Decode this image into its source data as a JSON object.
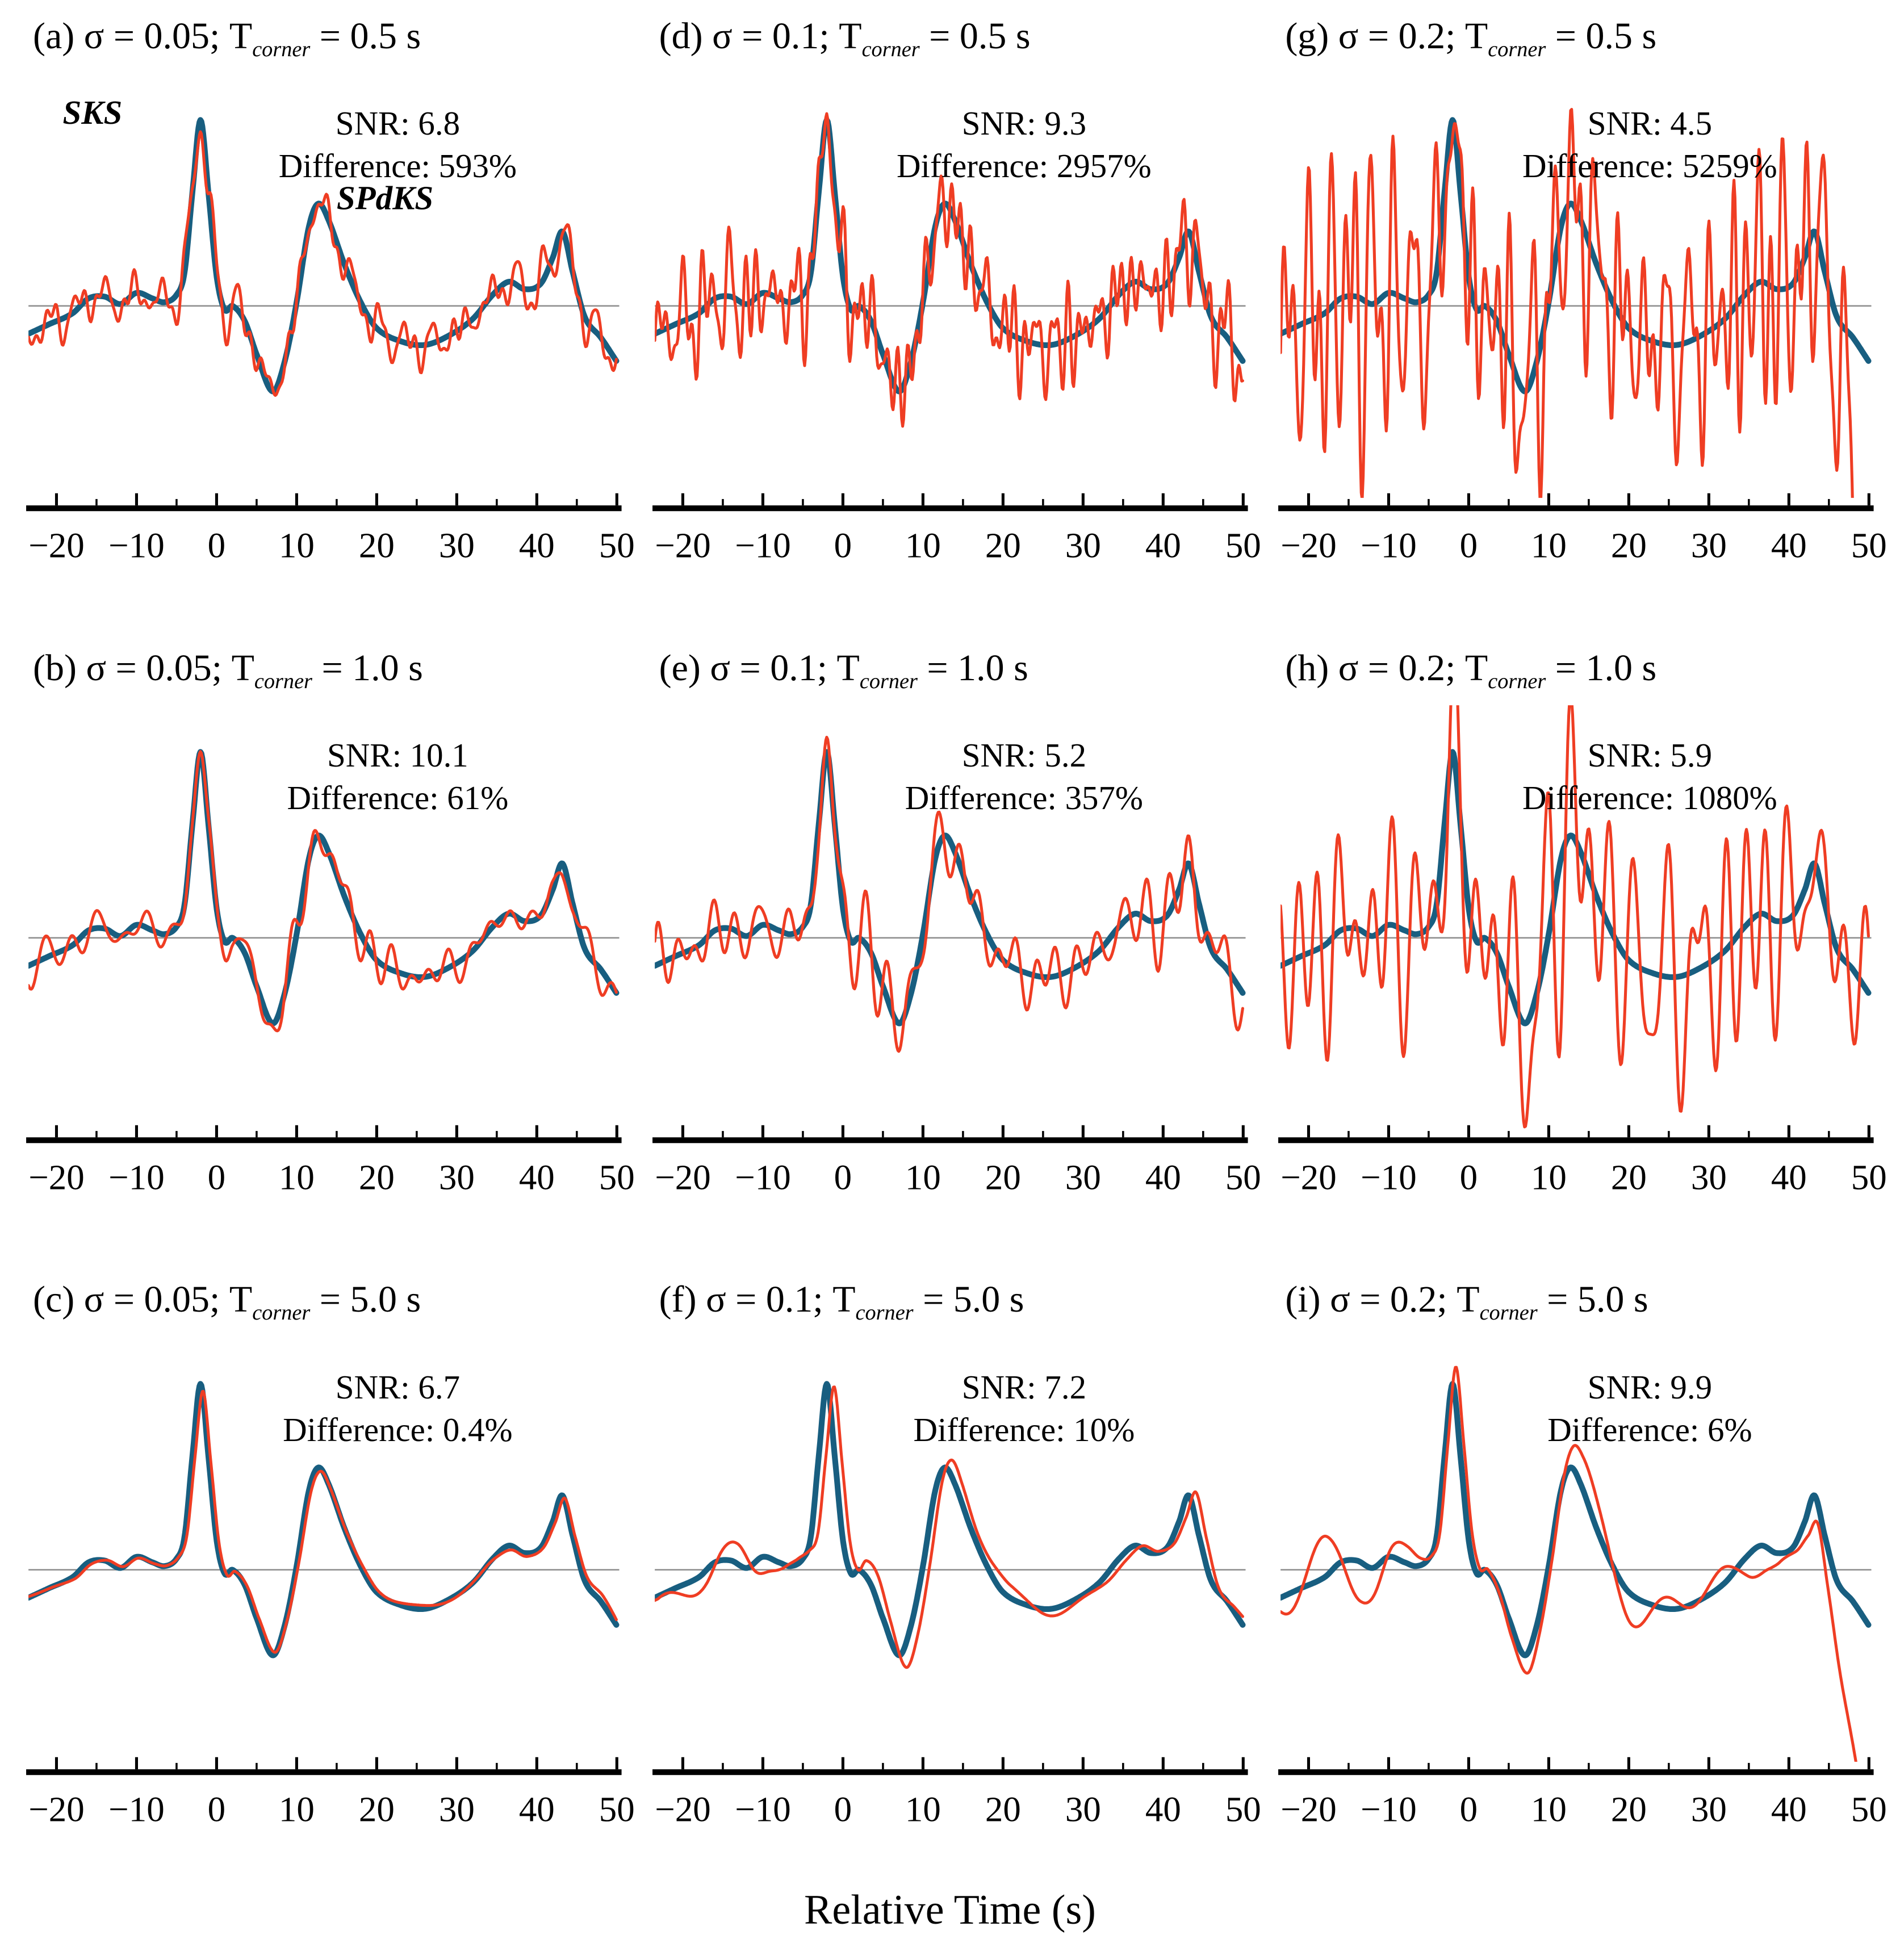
{
  "figure": {
    "xlabel": "Relative Time (s)"
  },
  "chart_data": {
    "type": "line",
    "xlabel": "Relative Time (s)",
    "x_range": [
      -23.5,
      50.3
    ],
    "y_range": [
      -1.02,
      1.22
    ],
    "grid": "off",
    "legend": "none",
    "colors": {
      "reference_trace": "#185e80",
      "noisy_trace": "#ef3d23",
      "zero_line": "#8c8c8c",
      "axis": "#000000"
    },
    "series": [
      {
        "id": "reference-waveform",
        "color": "#185e80",
        "style": "thick"
      },
      {
        "id": "noisy-waveform",
        "color": "#ef3d23",
        "style": "thin"
      }
    ],
    "x_ticks": [
      {
        "v": -20,
        "label": "−20"
      },
      {
        "v": -10,
        "label": "−10"
      },
      {
        "v": 0,
        "label": "0"
      },
      {
        "v": 10,
        "label": "10"
      },
      {
        "v": 20,
        "label": "20"
      },
      {
        "v": 30,
        "label": "30"
      },
      {
        "v": 40,
        "label": "40"
      },
      {
        "v": 50,
        "label": "50"
      }
    ],
    "base_waveform": {
      "t": [
        -24,
        -21,
        -18,
        -16,
        -14,
        -12,
        -10,
        -8,
        -6.5,
        -5,
        -4,
        -3,
        -2,
        -1,
        0,
        1,
        2,
        3.5,
        5,
        7,
        8.5,
        10,
        11.5,
        12.7,
        14,
        16,
        18,
        20,
        23,
        26,
        29,
        32,
        34.5,
        36.5,
        38.5,
        40.5,
        42,
        43.2,
        44.5,
        46,
        48,
        50
      ],
      "y": [
        -0.16,
        -0.1,
        -0.04,
        0.04,
        0.05,
        0.01,
        0.07,
        0.04,
        0.02,
        0.06,
        0.18,
        0.62,
        1.0,
        0.6,
        0.16,
        -0.02,
        0.0,
        -0.08,
        -0.26,
        -0.46,
        -0.3,
        0.02,
        0.42,
        0.55,
        0.46,
        0.22,
        0.02,
        -0.12,
        -0.19,
        -0.21,
        -0.16,
        -0.07,
        0.06,
        0.13,
        0.09,
        0.12,
        0.26,
        0.4,
        0.18,
        -0.06,
        -0.17,
        -0.3
      ]
    },
    "panels": [
      {
        "id": "a",
        "title": {
          "pre": "(a) σ = 0.05;  T",
          "sub": "corner",
          "post": " = 0.5 s"
        },
        "sigma": 0.05,
        "t_corner_s": 0.5,
        "snr_label": "SNR: 6.8",
        "snr_value": 6.8,
        "difference_label": "Difference: 593%",
        "difference_pct": 593,
        "noise": {
          "amp": 0.07,
          "lmin": 1.1,
          "lmax": 4.0,
          "seed": 3
        },
        "red": {
          "shift": 0,
          "scale": 1.0
        },
        "droop": null,
        "phase_labels": [
          {
            "text": "SKS",
            "t": -15.5,
            "y": 0.98,
            "anchor": "middle"
          },
          {
            "text": "SPdKS",
            "t": 15.0,
            "y": 0.52,
            "anchor": "start"
          }
        ]
      },
      {
        "id": "d",
        "title": {
          "pre": "(d) σ = 0.1;  T",
          "sub": "corner",
          "post": " = 0.5 s"
        },
        "sigma": 0.1,
        "t_corner_s": 0.5,
        "snr_label": "SNR: 9.3",
        "snr_value": 9.3,
        "difference_label": "Difference: 2957%",
        "difference_pct": 2957,
        "noise": {
          "amp": 0.16,
          "lmin": 1.1,
          "lmax": 4.0,
          "seed": 7
        },
        "red": {
          "shift": 0,
          "scale": 1.0
        },
        "droop": null,
        "phase_labels": []
      },
      {
        "id": "g",
        "title": {
          "pre": "(g) σ = 0.2;  T",
          "sub": "corner",
          "post": " = 0.5 s"
        },
        "sigma": 0.2,
        "t_corner_s": 0.5,
        "snr_label": "SNR: 4.5",
        "snr_value": 4.5,
        "difference_label": "Difference: 5259%",
        "difference_pct": 5259,
        "noise": {
          "amp": 0.38,
          "lmin": 1.1,
          "lmax": 4.0,
          "seed": 5
        },
        "red": {
          "shift": 0,
          "scale": 1.0
        },
        "droop": {
          "start": 44,
          "value": -1.7
        },
        "phase_labels": []
      },
      {
        "id": "b",
        "title": {
          "pre": "(b) σ = 0.05; T",
          "sub": "corner",
          "post": " = 1.0 s"
        },
        "sigma": 0.05,
        "t_corner_s": 1.0,
        "snr_label": "SNR: 10.1",
        "snr_value": 10.1,
        "difference_label": "Difference: 61%",
        "difference_pct": 61,
        "noise": {
          "amp": 0.06,
          "lmin": 2.2,
          "lmax": 7.0,
          "seed": 13
        },
        "red": {
          "shift": 0,
          "scale": 1.0
        },
        "droop": null,
        "phase_labels": []
      },
      {
        "id": "e",
        "title": {
          "pre": "(e) σ = 0.1; T",
          "sub": "corner",
          "post": " = 1.0 s"
        },
        "sigma": 0.1,
        "t_corner_s": 1.0,
        "snr_label": "SNR: 5.2",
        "snr_value": 5.2,
        "difference_label": "Difference: 357%",
        "difference_pct": 357,
        "noise": {
          "amp": 0.13,
          "lmin": 2.2,
          "lmax": 7.0,
          "seed": 17
        },
        "red": {
          "shift": 0,
          "scale": 1.0
        },
        "droop": null,
        "phase_labels": []
      },
      {
        "id": "h",
        "title": {
          "pre": "(h) σ = 0.2; T",
          "sub": "corner",
          "post": " = 1.0 s"
        },
        "sigma": 0.2,
        "t_corner_s": 1.0,
        "snr_label": "SNR: 5.9",
        "snr_value": 5.9,
        "difference_label": "Difference: 1080%",
        "difference_pct": 1080,
        "noise": {
          "amp": 0.3,
          "lmin": 2.2,
          "lmax": 7.0,
          "seed": 23
        },
        "red": {
          "shift": 0,
          "scale": 1.05
        },
        "droop": null,
        "phase_labels": []
      },
      {
        "id": "c",
        "title": {
          "pre": "(c) σ = 0.05;  T",
          "sub": "corner",
          "post": " = 5.0 s"
        },
        "sigma": 0.05,
        "t_corner_s": 5.0,
        "snr_label": "SNR: 6.7",
        "snr_value": 6.7,
        "difference_label": "Difference: 0.4%",
        "difference_pct": 0.4,
        "noise": {
          "amp": 0.02,
          "lmin": 7.0,
          "lmax": 18.0,
          "seed": 31
        },
        "red": {
          "shift": 0.3,
          "scale": 0.96
        },
        "droop": null,
        "phase_labels": []
      },
      {
        "id": "f",
        "title": {
          "pre": "(f) σ = 0.1; T",
          "sub": "corner",
          "post": " = 5.0 s"
        },
        "sigma": 0.1,
        "t_corner_s": 5.0,
        "snr_label": "SNR: 7.2",
        "snr_value": 7.2,
        "difference_label": "Difference: 10%",
        "difference_pct": 10,
        "noise": {
          "amp": 0.05,
          "lmin": 7.0,
          "lmax": 18.0,
          "seed": 37
        },
        "red": {
          "shift": 0.9,
          "scale": 1.03
        },
        "droop": null,
        "phase_labels": []
      },
      {
        "id": "i",
        "title": {
          "pre": "(i) σ = 0.2; T",
          "sub": "corner",
          "post": " = 5.0 s"
        },
        "sigma": 0.2,
        "t_corner_s": 5.0,
        "snr_label": "SNR: 9.9",
        "snr_value": 9.9,
        "difference_label": "Difference: 6%",
        "difference_pct": 6,
        "noise": {
          "amp": 0.1,
          "lmin": 7.0,
          "lmax": 18.0,
          "seed": 41
        },
        "red": {
          "shift": 0.4,
          "scale": 1.07
        },
        "droop": {
          "start": 38,
          "value": -1.15
        },
        "phase_labels": []
      }
    ]
  }
}
